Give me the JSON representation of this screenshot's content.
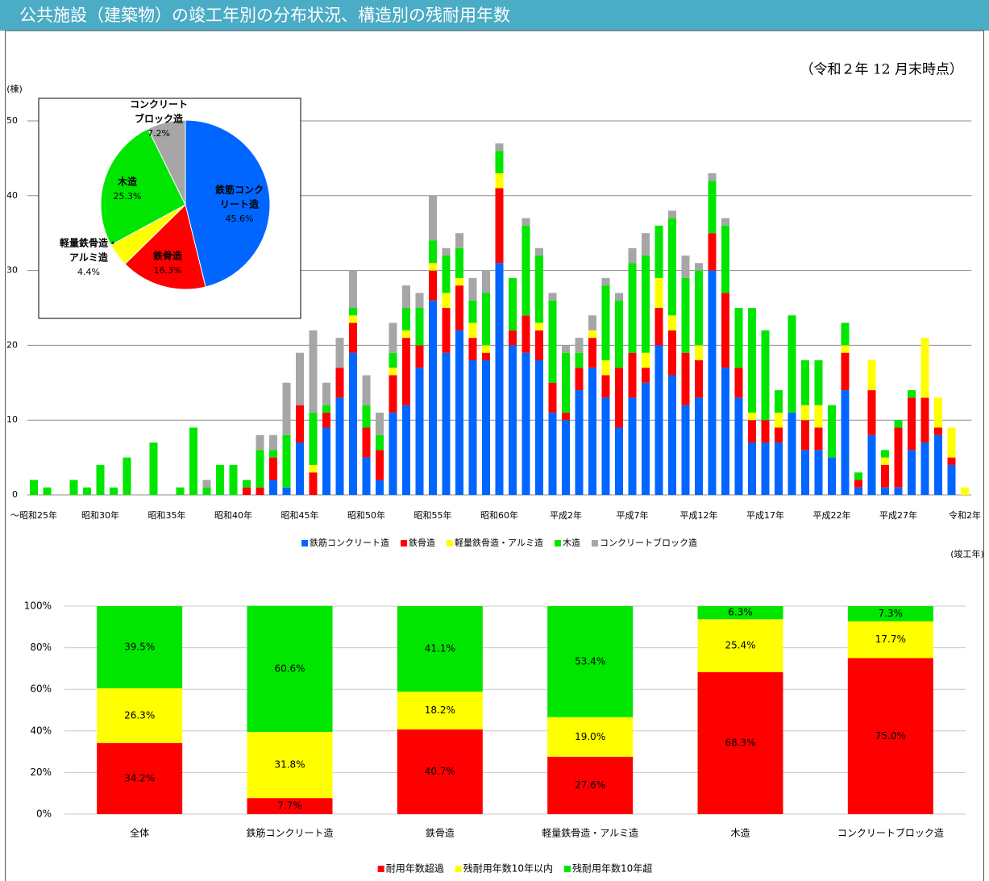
{
  "header": {
    "title": "公共施設（建築物）の竣工年別の分布状況、構造別の残耐用年数",
    "note": "（令和２年 12 月末時点）"
  },
  "chart_data": [
    {
      "type": "bar",
      "stacked": true,
      "ylabel": "(棟)",
      "xlabel": "(竣工年)",
      "categories": [
        "～昭和25年",
        null,
        null,
        null,
        null,
        "昭和30年",
        null,
        null,
        null,
        null,
        "昭和35年",
        null,
        null,
        null,
        null,
        "昭和40年",
        null,
        null,
        null,
        null,
        "昭和45年",
        null,
        null,
        null,
        null,
        "昭和50年",
        null,
        null,
        null,
        null,
        "昭和55年",
        null,
        null,
        null,
        null,
        "昭和60年",
        null,
        null,
        null,
        null,
        "平成2年",
        null,
        null,
        null,
        null,
        "平成7年",
        null,
        null,
        null,
        null,
        "平成12年",
        null,
        null,
        null,
        null,
        "平成17年",
        null,
        null,
        null,
        null,
        "平成22年",
        null,
        null,
        null,
        null,
        "平成27年",
        null,
        null,
        null,
        null,
        "令和2年"
      ],
      "series": [
        {
          "name": "鉄筋コンクリート造",
          "color": "#0066ff",
          "values": [
            0,
            0,
            0,
            0,
            0,
            0,
            0,
            0,
            0,
            0,
            0,
            0,
            0,
            0,
            0,
            0,
            0,
            0,
            2,
            1,
            7,
            0,
            9,
            13,
            19,
            5,
            2,
            11,
            12,
            17,
            26,
            19,
            22,
            18,
            18,
            31,
            20,
            19,
            18,
            11,
            10,
            14,
            17,
            13,
            9,
            13,
            15,
            20,
            16,
            12,
            13,
            30,
            17,
            13,
            7,
            7,
            7,
            11,
            6,
            6,
            5,
            14,
            1,
            8,
            1,
            1,
            6,
            7,
            8,
            4,
            0
          ]
        },
        {
          "name": "鉄骨造",
          "color": "#ff0000",
          "values": [
            0,
            0,
            0,
            0,
            0,
            0,
            0,
            0,
            0,
            0,
            0,
            0,
            0,
            0,
            0,
            0,
            1,
            1,
            3,
            0,
            5,
            3,
            2,
            4,
            4,
            4,
            4,
            5,
            9,
            3,
            4,
            6,
            6,
            3,
            1,
            10,
            2,
            5,
            4,
            4,
            1,
            3,
            4,
            3,
            8,
            6,
            2,
            5,
            6,
            7,
            5,
            5,
            10,
            4,
            3,
            3,
            2,
            0,
            4,
            3,
            0,
            5,
            1,
            6,
            3,
            8,
            7,
            6,
            1,
            1,
            0
          ]
        },
        {
          "name": "軽量鉄骨造・アルミ造",
          "color": "#ffff00",
          "values": [
            0,
            0,
            0,
            0,
            0,
            0,
            0,
            0,
            0,
            0,
            0,
            0,
            0,
            0,
            0,
            0,
            0,
            0,
            0,
            0,
            0,
            1,
            0,
            0,
            1,
            0,
            0,
            1,
            1,
            0,
            1,
            2,
            1,
            2,
            1,
            2,
            0,
            0,
            1,
            0,
            0,
            0,
            1,
            2,
            0,
            0,
            2,
            4,
            2,
            0,
            2,
            0,
            0,
            0,
            1,
            0,
            2,
            0,
            2,
            3,
            0,
            1,
            0,
            4,
            1,
            0,
            0,
            8,
            4,
            4,
            1
          ]
        },
        {
          "name": "木造",
          "color": "#00e600",
          "values": [
            2,
            1,
            0,
            2,
            1,
            4,
            1,
            5,
            0,
            7,
            0,
            1,
            9,
            1,
            4,
            4,
            1,
            5,
            1,
            7,
            0,
            7,
            1,
            0,
            1,
            3,
            2,
            2,
            3,
            5,
            3,
            5,
            4,
            3,
            7,
            3,
            7,
            12,
            9,
            11,
            8,
            2,
            0,
            10,
            9,
            12,
            13,
            7,
            13,
            10,
            10,
            7,
            9,
            8,
            14,
            12,
            3,
            13,
            6,
            6,
            7,
            3,
            1,
            0,
            1,
            1,
            1,
            0,
            0,
            0,
            0
          ]
        },
        {
          "name": "コンクリートブロック造",
          "color": "#a6a6a6",
          "values": [
            0,
            0,
            0,
            0,
            0,
            0,
            0,
            0,
            0,
            0,
            0,
            0,
            0,
            1,
            0,
            0,
            0,
            2,
            2,
            7,
            7,
            11,
            3,
            4,
            5,
            4,
            3,
            4,
            3,
            2,
            6,
            1,
            2,
            3,
            3,
            1,
            0,
            1,
            1,
            1,
            1,
            2,
            2,
            1,
            1,
            2,
            3,
            0,
            1,
            3,
            1,
            1,
            1,
            0,
            0,
            0,
            0,
            0,
            0,
            0,
            0,
            0,
            0,
            0,
            0,
            0,
            0,
            0,
            0,
            0,
            0
          ]
        }
      ],
      "ylim": [
        0,
        50
      ],
      "yticks": [
        0,
        10,
        20,
        30,
        40,
        50
      ],
      "grid": true,
      "legend": "bottom"
    },
    {
      "type": "pie",
      "labels": [
        [
          "鉄筋コンク",
          "リート造"
        ],
        [
          "鉄骨造"
        ],
        [
          "軽量鉄骨造・",
          "アルミ造"
        ],
        [
          "木造"
        ],
        [
          "コンクリート",
          "ブロック造"
        ]
      ],
      "values": [
        45.6,
        16.3,
        4.4,
        25.3,
        7.2
      ],
      "value_labels": [
        "45.6%",
        "16.3%",
        "4.4%",
        "25.3%",
        "7.2%"
      ],
      "colors": [
        "#0066ff",
        "#ff0000",
        "#ffff00",
        "#00e600",
        "#a6a6a6"
      ]
    },
    {
      "type": "bar",
      "stacked": true,
      "categories": [
        "全体",
        "鉄筋コンクリート造",
        "鉄骨造",
        "軽量鉄骨造・アルミ造",
        "木造",
        "コンクリートブロック造"
      ],
      "series": [
        {
          "name": "耐用年数超過",
          "color": "#ff0000",
          "values": [
            34.2,
            7.7,
            40.7,
            27.6,
            68.3,
            75
          ],
          "value_labels": [
            "34.2%",
            "7.7%",
            "40.7%",
            "27.6%",
            "68.3%",
            "75.0%"
          ]
        },
        {
          "name": "残耐用年数10年以内",
          "color": "#ffff00",
          "values": [
            26.3,
            31.8,
            18.2,
            19,
            25.4,
            17.7
          ],
          "value_labels": [
            "26.3%",
            "31.8%",
            "18.2%",
            "19.0%",
            "25.4%",
            "17.7%"
          ]
        },
        {
          "name": "残耐用年数10年超",
          "color": "#00e600",
          "values": [
            39.5,
            60.6,
            41.1,
            53.4,
            6.3,
            7.3
          ],
          "value_labels": [
            "39.5%",
            "60.6%",
            "41.1%",
            "53.4%",
            "6.3%",
            "7.3%"
          ]
        }
      ],
      "ylim": [
        0,
        100
      ],
      "yticks": [
        {
          "value": 0,
          "label": "0%"
        },
        {
          "value": 20,
          "label": "20%"
        },
        {
          "value": 40,
          "label": "40%"
        },
        {
          "value": 60,
          "label": "60%"
        },
        {
          "value": 80,
          "label": "80%"
        },
        {
          "value": 100,
          "label": "100%"
        }
      ],
      "grid": true,
      "legend": "bottom"
    }
  ]
}
